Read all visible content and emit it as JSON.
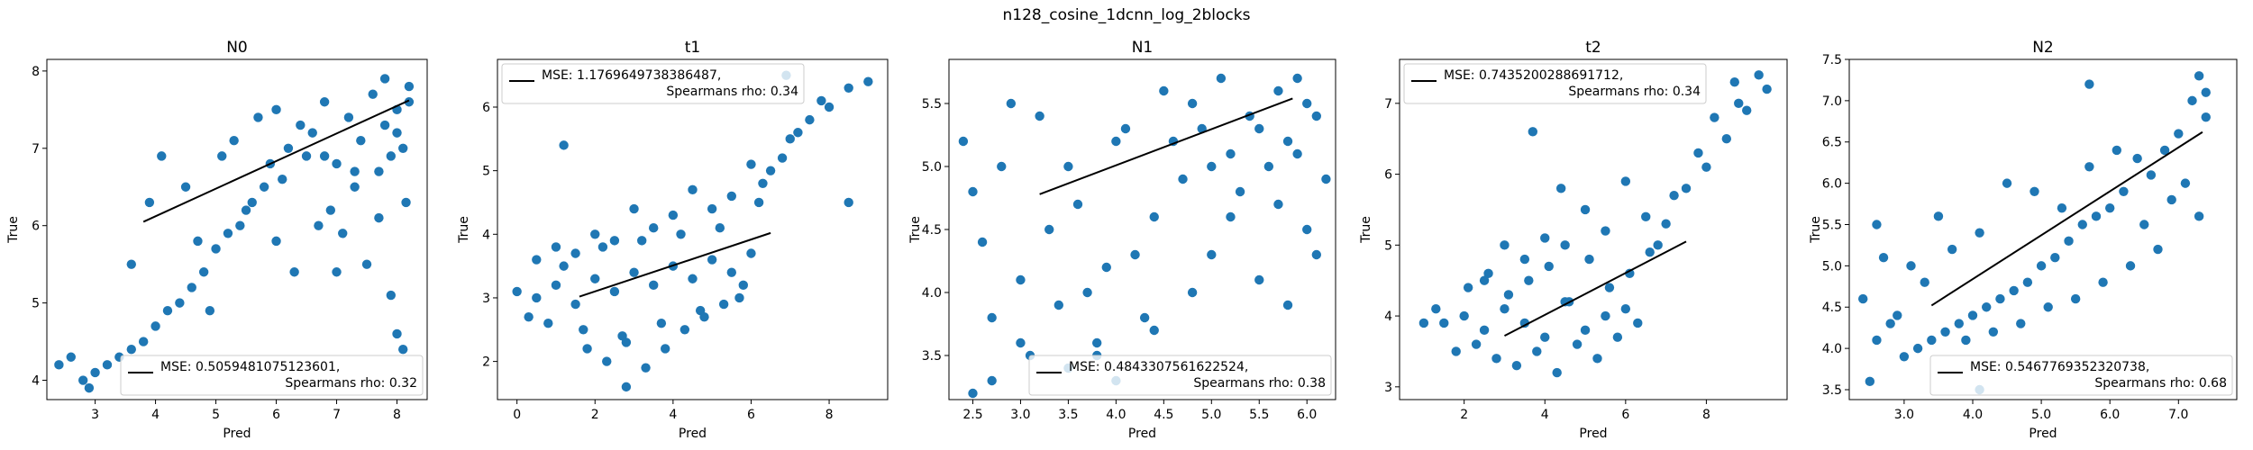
{
  "figure": {
    "suptitle": "n128_cosine_1dcnn_log_2blocks"
  },
  "chart_data": [
    {
      "type": "scatter",
      "title": "N0",
      "xlabel": "Pred",
      "ylabel": "True",
      "xlim": [
        2.2,
        8.5
      ],
      "ylim": [
        3.75,
        8.15
      ],
      "xticks": [
        3,
        4,
        5,
        6,
        7,
        8
      ],
      "yticks": [
        4,
        5,
        6,
        7,
        8
      ],
      "tick_format": 0,
      "point_color": "#1f77b4",
      "fit_color": "#000000",
      "fit_line": {
        "x": [
          3.8,
          8.2
        ],
        "y": [
          6.05,
          7.62
        ]
      },
      "legend": {
        "placement": "lower right",
        "line1": "MSE: 0.5059481075123601,",
        "line2": "Spearmans rho: 0.32"
      },
      "series": [
        {
          "x": [
            6.0,
            6.4,
            6.8,
            7.2,
            7.6,
            8.0,
            8.2,
            6.2,
            6.6,
            7.0,
            7.4,
            7.8,
            8.1,
            6.1,
            6.5,
            6.9,
            7.3,
            7.7,
            8.15,
            5.5,
            5.2,
            5.0,
            4.8,
            4.6,
            4.4,
            4.2,
            4.0,
            3.8,
            3.6,
            3.4,
            3.2,
            3.0,
            2.8,
            2.6,
            2.4,
            5.8,
            5.6,
            5.4,
            6.0,
            6.3,
            7.1,
            7.5,
            7.9,
            8.0,
            8.1,
            7.9,
            8.0,
            7.8,
            3.9,
            4.1,
            4.5,
            4.7,
            5.1,
            5.3,
            5.7,
            5.9,
            3.6,
            4.9,
            2.9,
            6.7,
            7.3,
            7.7,
            8.2,
            7.0,
            6.8
          ],
          "y": [
            7.5,
            7.3,
            7.6,
            7.4,
            7.7,
            7.5,
            7.6,
            7.0,
            7.2,
            6.8,
            7.1,
            7.3,
            7.0,
            6.6,
            6.9,
            6.2,
            6.5,
            6.7,
            6.3,
            6.2,
            5.9,
            5.7,
            5.4,
            5.2,
            5.0,
            4.9,
            4.7,
            4.5,
            4.4,
            4.3,
            4.2,
            4.1,
            4.0,
            4.3,
            4.2,
            6.5,
            6.3,
            6.0,
            5.8,
            5.4,
            5.9,
            5.5,
            5.1,
            4.6,
            4.4,
            6.9,
            7.2,
            7.9,
            6.3,
            6.9,
            6.5,
            5.8,
            6.9,
            7.1,
            7.4,
            6.8,
            5.5,
            4.9,
            3.9,
            6.0,
            6.7,
            6.1,
            7.8,
            5.4,
            6.9
          ]
        }
      ]
    },
    {
      "type": "scatter",
      "title": "t1",
      "xlabel": "Pred",
      "ylabel": "True",
      "xlim": [
        -0.5,
        9.5
      ],
      "ylim": [
        1.4,
        6.75
      ],
      "xticks": [
        0,
        2,
        4,
        6,
        8
      ],
      "yticks": [
        2,
        3,
        4,
        5,
        6
      ],
      "tick_format": 0,
      "point_color": "#1f77b4",
      "fit_color": "#000000",
      "fit_line": {
        "x": [
          1.6,
          6.5
        ],
        "y": [
          3.02,
          4.02
        ]
      },
      "legend": {
        "placement": "upper left",
        "line1": "MSE: 1.1769649738386487,",
        "line2": "Spearmans rho: 0.34"
      },
      "series": [
        {
          "x": [
            0.0,
            0.5,
            1.0,
            1.5,
            2.0,
            2.5,
            3.0,
            3.5,
            4.0,
            4.5,
            5.0,
            5.5,
            6.0,
            0.3,
            0.8,
            1.2,
            1.7,
            2.2,
            2.7,
            3.2,
            3.7,
            4.2,
            4.7,
            5.2,
            5.7,
            6.2,
            6.5,
            7.0,
            7.5,
            8.0,
            8.5,
            9.0,
            6.8,
            7.2,
            7.8,
            6.0,
            5.5,
            5.0,
            4.5,
            4.0,
            3.5,
            3.0,
            2.5,
            2.0,
            1.5,
            1.0,
            0.5,
            1.8,
            2.3,
            2.8,
            3.3,
            3.8,
            4.3,
            4.8,
            5.3,
            5.8,
            6.3,
            1.2,
            8.5,
            2.8,
            6.9
          ],
          "y": [
            3.1,
            3.0,
            3.2,
            2.9,
            3.3,
            3.1,
            3.4,
            3.2,
            3.5,
            3.3,
            3.6,
            3.4,
            3.7,
            2.7,
            2.6,
            3.5,
            2.5,
            3.8,
            2.4,
            3.9,
            2.6,
            4.0,
            2.8,
            4.1,
            3.0,
            4.5,
            5.0,
            5.5,
            5.8,
            6.0,
            6.3,
            6.4,
            5.2,
            5.6,
            6.1,
            5.1,
            4.6,
            4.4,
            4.7,
            4.3,
            4.1,
            4.4,
            3.9,
            4.0,
            3.7,
            3.8,
            3.6,
            2.2,
            2.0,
            2.3,
            1.9,
            2.2,
            2.5,
            2.7,
            2.9,
            3.2,
            4.8,
            5.4,
            4.5,
            1.6,
            6.5
          ]
        }
      ]
    },
    {
      "type": "scatter",
      "title": "N1",
      "xlabel": "Pred",
      "ylabel": "True",
      "xlim": [
        2.25,
        6.3
      ],
      "ylim": [
        3.15,
        5.85
      ],
      "xticks": [
        2.5,
        3.0,
        3.5,
        4.0,
        4.5,
        5.0,
        5.5,
        6.0
      ],
      "yticks": [
        3.5,
        4.0,
        4.5,
        5.0,
        5.5
      ],
      "tick_format": 1,
      "point_color": "#1f77b4",
      "fit_color": "#000000",
      "fit_line": {
        "x": [
          3.2,
          5.85
        ],
        "y": [
          4.78,
          5.54
        ]
      },
      "legend": {
        "placement": "lower right",
        "line1": "MSE: 0.4843307561622524,",
        "line2": "Spearmans rho: 0.38"
      },
      "series": [
        {
          "x": [
            4.5,
            4.8,
            5.1,
            5.4,
            5.7,
            6.0,
            4.6,
            4.9,
            5.2,
            5.5,
            5.8,
            6.1,
            4.7,
            5.0,
            5.3,
            5.6,
            5.9,
            6.2,
            2.4,
            2.6,
            2.8,
            3.0,
            3.2,
            3.4,
            3.6,
            3.8,
            4.0,
            4.2,
            4.4,
            2.5,
            2.7,
            2.9,
            3.1,
            3.3,
            3.5,
            3.7,
            3.9,
            4.1,
            4.3,
            5.0,
            5.5,
            6.0,
            5.8,
            5.2,
            4.8,
            4.4,
            3.5,
            3.0,
            2.7,
            3.8,
            6.1,
            5.7,
            2.5,
            4.0,
            5.9
          ],
          "y": [
            5.6,
            5.5,
            5.7,
            5.4,
            5.6,
            5.5,
            5.2,
            5.3,
            5.1,
            5.3,
            5.2,
            5.4,
            4.9,
            5.0,
            4.8,
            5.0,
            5.1,
            4.9,
            5.2,
            4.4,
            5.0,
            4.1,
            5.4,
            3.9,
            4.7,
            3.6,
            5.2,
            4.3,
            4.6,
            4.8,
            3.8,
            5.5,
            3.5,
            4.5,
            5.0,
            4.0,
            4.2,
            5.3,
            3.8,
            4.3,
            4.1,
            4.5,
            3.9,
            4.6,
            4.0,
            3.7,
            3.4,
            3.6,
            3.3,
            3.5,
            4.3,
            4.7,
            3.2,
            3.3,
            5.7
          ]
        }
      ]
    },
    {
      "type": "scatter",
      "title": "t2",
      "xlabel": "Pred",
      "ylabel": "True",
      "xlim": [
        0.4,
        10.0
      ],
      "ylim": [
        2.82,
        7.62
      ],
      "xticks": [
        2,
        4,
        6,
        8
      ],
      "yticks": [
        3,
        4,
        5,
        6,
        7
      ],
      "tick_format": 0,
      "point_color": "#1f77b4",
      "fit_color": "#000000",
      "fit_line": {
        "x": [
          3.0,
          7.5
        ],
        "y": [
          3.72,
          5.05
        ]
      },
      "legend": {
        "placement": "upper left",
        "line1": "MSE: 0.7435200288691712,",
        "line2": "Spearmans rho: 0.34"
      },
      "series": [
        {
          "x": [
            1.5,
            2.0,
            2.5,
            3.0,
            3.5,
            4.0,
            4.5,
            5.0,
            5.5,
            6.0,
            1.8,
            2.3,
            2.8,
            3.3,
            3.8,
            4.3,
            4.8,
            5.3,
            5.8,
            6.3,
            2.1,
            2.6,
            3.1,
            3.6,
            4.1,
            4.6,
            5.1,
            5.6,
            6.1,
            6.6,
            7.0,
            7.5,
            8.0,
            8.5,
            9.0,
            9.5,
            7.2,
            7.8,
            8.2,
            8.8,
            6.8,
            6.5,
            6.0,
            5.5,
            5.0,
            4.5,
            4.0,
            3.5,
            3.0,
            2.5,
            1.0,
            1.3,
            9.3,
            8.7,
            3.7,
            4.4
          ],
          "y": [
            3.9,
            4.0,
            3.8,
            4.1,
            3.9,
            3.7,
            4.2,
            3.8,
            4.0,
            4.1,
            3.5,
            3.6,
            3.4,
            3.3,
            3.5,
            3.2,
            3.6,
            3.4,
            3.7,
            3.9,
            4.4,
            4.6,
            4.3,
            4.5,
            4.7,
            4.2,
            4.8,
            4.4,
            4.6,
            4.9,
            5.3,
            5.8,
            6.1,
            6.5,
            6.9,
            7.2,
            5.7,
            6.3,
            6.8,
            7.0,
            5.0,
            5.4,
            5.9,
            5.2,
            5.5,
            5.0,
            5.1,
            4.8,
            5.0,
            4.5,
            3.9,
            4.1,
            7.4,
            7.3,
            6.6,
            5.8
          ]
        }
      ]
    },
    {
      "type": "scatter",
      "title": "N2",
      "xlabel": "Pred",
      "ylabel": "True",
      "xlim": [
        2.2,
        7.85
      ],
      "ylim": [
        3.38,
        7.5
      ],
      "xticks": [
        3,
        4,
        5,
        6,
        7
      ],
      "yticks": [
        3.5,
        4.0,
        4.5,
        5.0,
        5.5,
        6.0,
        6.5,
        7.0,
        7.5
      ],
      "tick_format": 1,
      "point_color": "#1f77b4",
      "fit_color": "#000000",
      "fit_line": {
        "x": [
          3.4,
          7.35
        ],
        "y": [
          4.52,
          6.62
        ]
      },
      "legend": {
        "placement": "lower right",
        "line1": "MSE: 0.5467769352320738,",
        "line2": "Spearmans rho: 0.68"
      },
      "series": [
        {
          "x": [
            7.0,
            7.2,
            7.4,
            6.8,
            6.6,
            6.4,
            6.2,
            6.0,
            5.8,
            5.6,
            5.4,
            5.2,
            5.0,
            4.8,
            4.6,
            4.4,
            4.2,
            4.0,
            3.8,
            3.6,
            3.4,
            3.2,
            3.0,
            2.8,
            2.6,
            2.4,
            7.1,
            7.3,
            6.9,
            6.7,
            6.5,
            6.3,
            6.1,
            5.9,
            5.7,
            5.5,
            5.3,
            5.1,
            4.9,
            4.7,
            4.5,
            4.3,
            4.1,
            3.9,
            3.7,
            3.5,
            3.3,
            3.1,
            2.9,
            2.7,
            7.3,
            7.4,
            2.5,
            2.6,
            4.1,
            5.7
          ],
          "y": [
            6.6,
            7.0,
            6.8,
            6.4,
            6.1,
            6.3,
            5.9,
            5.7,
            5.6,
            5.5,
            5.3,
            5.1,
            5.0,
            4.8,
            4.7,
            4.6,
            4.5,
            4.4,
            4.3,
            4.2,
            4.1,
            4.0,
            3.9,
            4.3,
            4.1,
            4.6,
            6.0,
            5.6,
            5.8,
            5.2,
            5.5,
            5.0,
            6.4,
            4.8,
            6.2,
            4.6,
            5.7,
            4.5,
            5.9,
            4.3,
            6.0,
            4.2,
            5.4,
            4.1,
            5.2,
            5.6,
            4.8,
            5.0,
            4.4,
            5.1,
            7.3,
            7.1,
            3.6,
            5.5,
            3.5,
            7.2
          ]
        }
      ]
    }
  ]
}
